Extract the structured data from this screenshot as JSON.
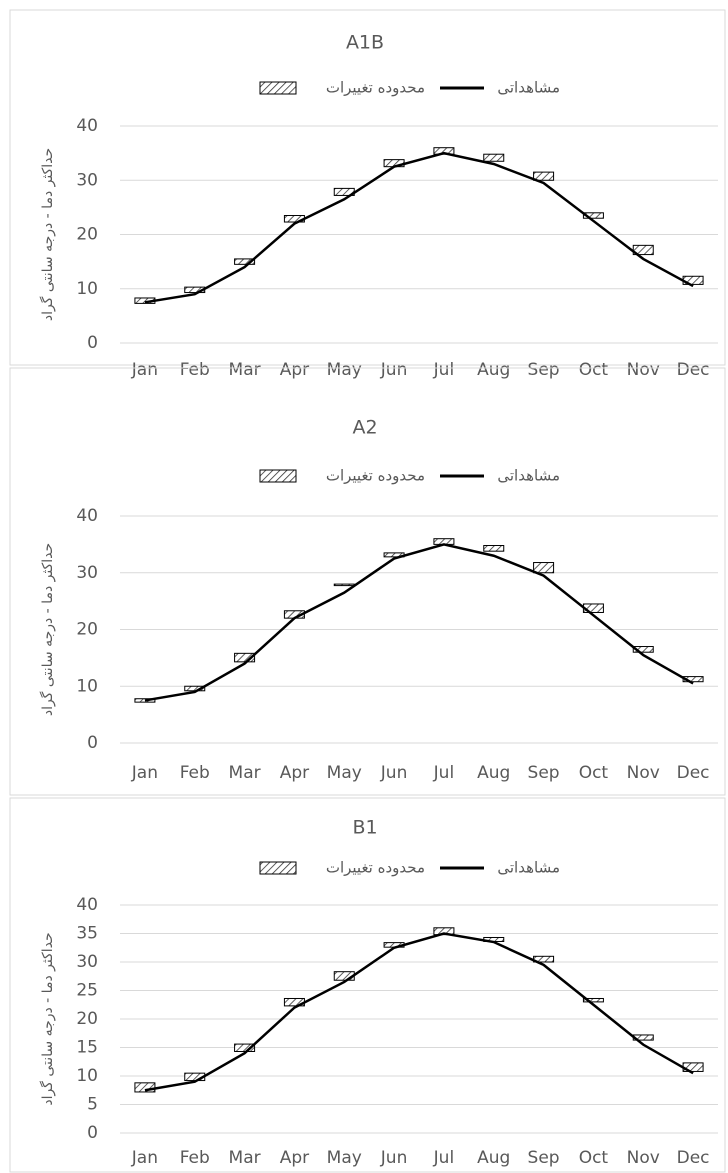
{
  "chart_data": [
    {
      "type": "range-line",
      "title": "A1B",
      "y_label": "حداکثر دما - درجه سانتی گراد",
      "categories": [
        "Jan",
        "Feb",
        "Mar",
        "Apr",
        "May",
        "Jun",
        "Jul",
        "Aug",
        "Sep",
        "Oct",
        "Nov",
        "Dec"
      ],
      "ylim": [
        0,
        40
      ],
      "yticks": [
        0,
        10,
        20,
        30,
        40
      ],
      "grid": true,
      "series": [
        {
          "name": "محدوده تغییرات",
          "kind": "range",
          "color": "#000000",
          "low": [
            7.3,
            9.3,
            14.5,
            22.3,
            27.2,
            32.5,
            34.8,
            33.5,
            30,
            23,
            16.3,
            10.8
          ],
          "high": [
            8.3,
            10.3,
            15.5,
            23.5,
            28.5,
            33.8,
            36,
            34.8,
            31.5,
            24,
            18,
            12.3
          ]
        },
        {
          "name": "مشاهداتی",
          "kind": "line",
          "color": "#000000",
          "values": [
            7.5,
            9,
            14,
            22,
            26.5,
            32.5,
            35,
            33,
            29.5,
            22.5,
            15.5,
            10.5
          ]
        }
      ]
    },
    {
      "type": "range-line",
      "title": "A2",
      "y_label": "حداکثر دما - درجه سانتی گراد",
      "categories": [
        "Jan",
        "Feb",
        "Mar",
        "Apr",
        "May",
        "Jun",
        "Jul",
        "Aug",
        "Sep",
        "Oct",
        "Nov",
        "Dec"
      ],
      "ylim": [
        0,
        40
      ],
      "yticks": [
        0,
        10,
        20,
        30,
        40
      ],
      "grid": true,
      "series": [
        {
          "name": "محدوده تغییرات",
          "kind": "range",
          "color": "#000000",
          "low": [
            7.2,
            9.2,
            14.3,
            22,
            27.8,
            32.8,
            35,
            33.8,
            30,
            23,
            16,
            10.8
          ],
          "high": [
            7.8,
            10,
            15.8,
            23.3,
            28,
            33.5,
            36,
            34.8,
            31.8,
            24.5,
            17,
            11.7
          ]
        },
        {
          "name": "مشاهداتی",
          "kind": "line",
          "color": "#000000",
          "values": [
            7.5,
            9,
            14,
            22,
            26.5,
            32.5,
            35,
            33,
            29.5,
            22.5,
            15.5,
            10.5
          ]
        }
      ]
    },
    {
      "type": "range-line",
      "title": "B1",
      "y_label": "حداکثر دما - درجه سانتی گراد",
      "categories": [
        "Jan",
        "Feb",
        "Mar",
        "Apr",
        "May",
        "Jun",
        "Jul",
        "Aug",
        "Sep",
        "Oct",
        "Nov",
        "Dec"
      ],
      "ylim": [
        0,
        40
      ],
      "yticks": [
        0,
        5,
        10,
        15,
        20,
        25,
        30,
        35,
        40
      ],
      "grid": true,
      "series": [
        {
          "name": "محدوده تغییرات",
          "kind": "range",
          "color": "#000000",
          "low": [
            7.2,
            9.2,
            14.3,
            22.3,
            26.8,
            32.6,
            34.8,
            33.6,
            30,
            23,
            16.3,
            10.8
          ],
          "high": [
            8.8,
            10.5,
            15.6,
            23.6,
            28.3,
            33.4,
            36,
            34.3,
            31,
            23.6,
            17.2,
            12.3
          ]
        },
        {
          "name": "مشاهداتی",
          "kind": "line",
          "color": "#000000",
          "values": [
            7.5,
            9,
            14,
            22,
            26.5,
            32.5,
            35,
            33.5,
            29.5,
            22.5,
            15.5,
            10.5
          ]
        }
      ]
    }
  ]
}
